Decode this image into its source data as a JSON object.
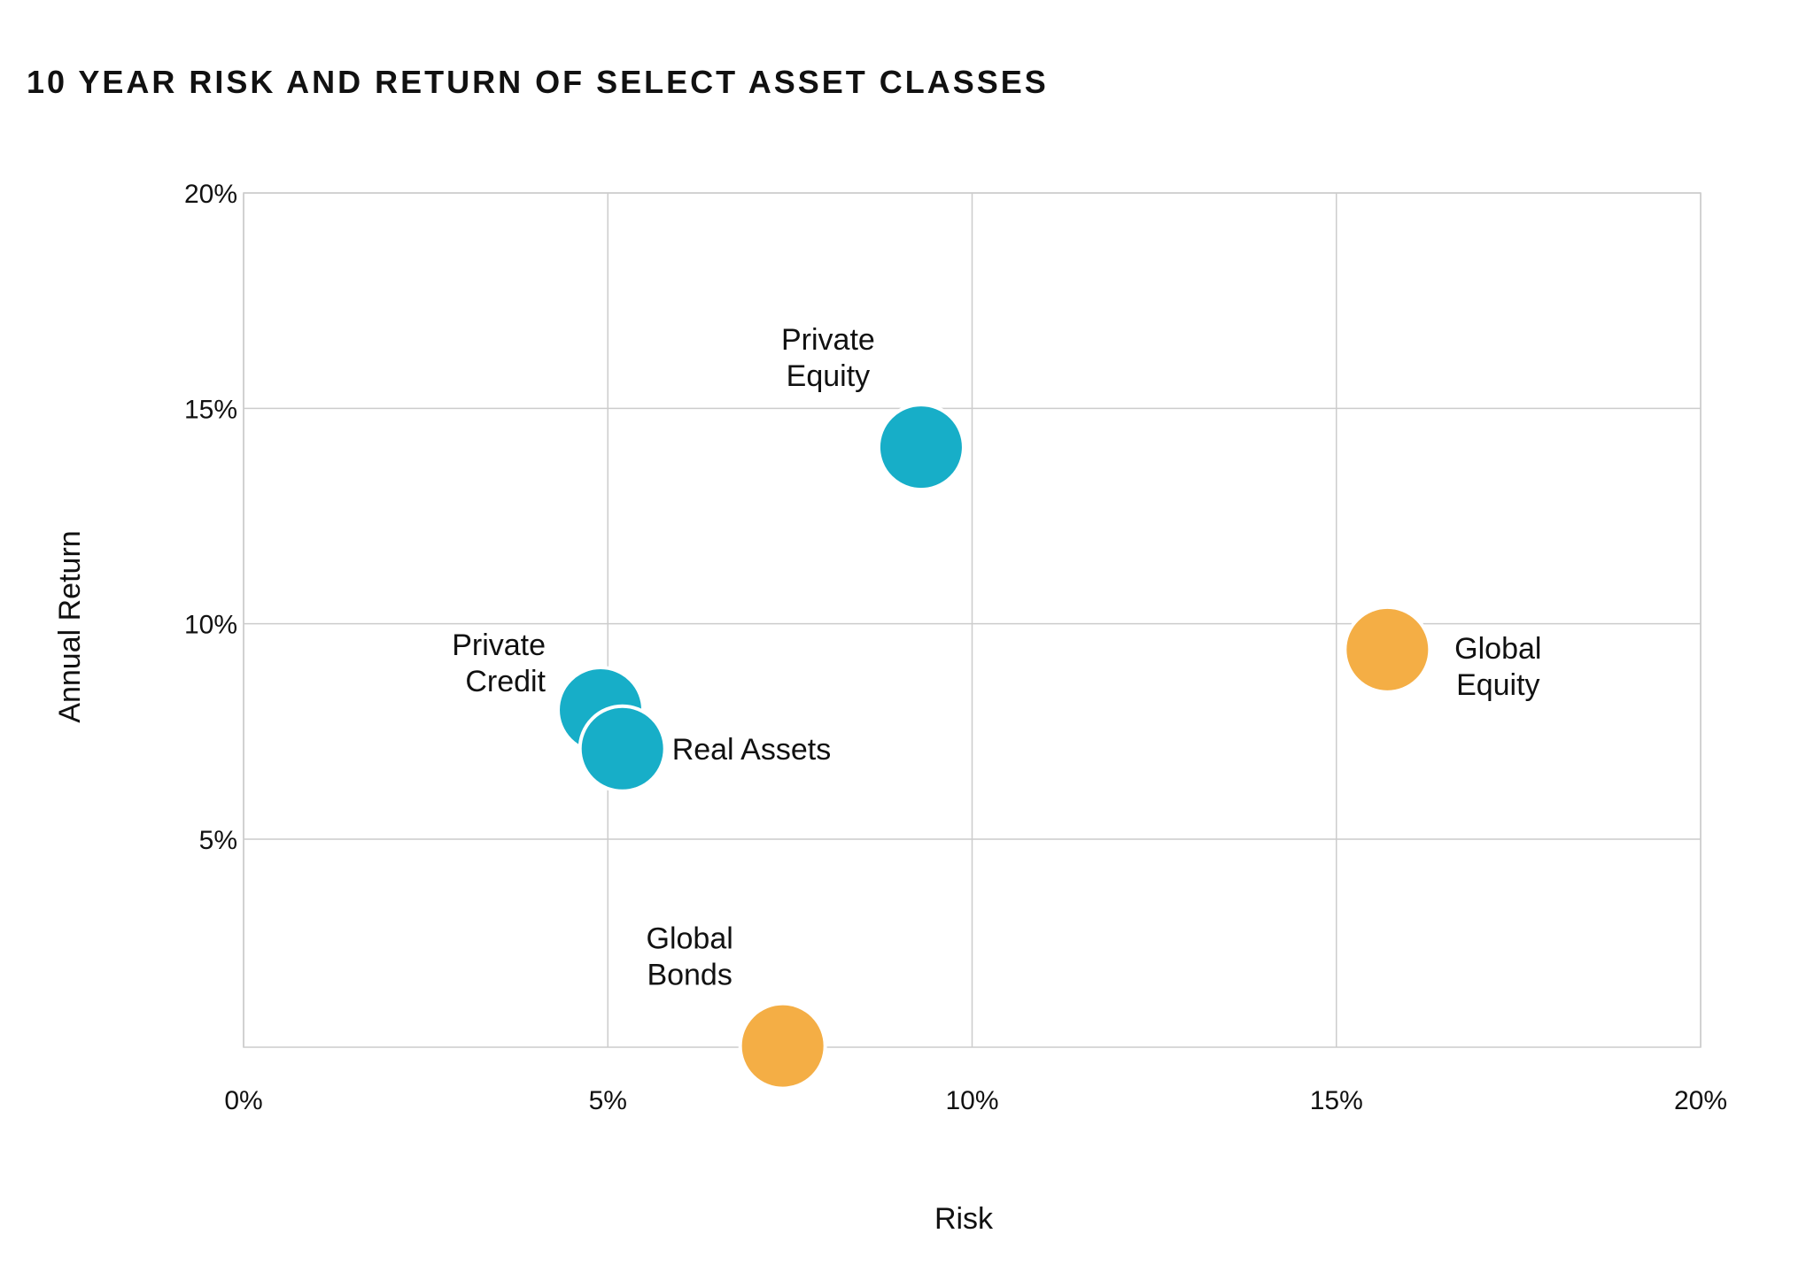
{
  "chart_data": {
    "type": "scatter",
    "title": "10 YEAR RISK AND RETURN OF SELECT ASSET CLASSES",
    "xlabel": "Risk",
    "ylabel": "Annual Return",
    "xlim": [
      0,
      20
    ],
    "ylim": [
      0.2,
      20
    ],
    "x_ticks": [
      0,
      5,
      10,
      15,
      20
    ],
    "x_tick_labels": [
      "0%",
      "5%",
      "10%",
      "15%",
      "20%"
    ],
    "y_ticks": [
      5,
      10,
      15,
      20
    ],
    "y_tick_labels": [
      "5%",
      "10%",
      "15%",
      "20%"
    ],
    "grid": true,
    "points": [
      {
        "name": "Private Equity",
        "label_lines": [
          "Private",
          "Equity"
        ],
        "x": 9.3,
        "y": 14.1,
        "color": "#17aec8",
        "label_side": "top-left"
      },
      {
        "name": "Global Equity",
        "label_lines": [
          "Global",
          "Equity"
        ],
        "x": 15.7,
        "y": 9.4,
        "color": "#f4ae45",
        "label_side": "right"
      },
      {
        "name": "Private Credit",
        "label_lines": [
          "Private",
          "Credit"
        ],
        "x": 4.9,
        "y": 8.0,
        "color": "#17aec8",
        "label_side": "left"
      },
      {
        "name": "Real Assets",
        "label_lines": [
          "Real Assets"
        ],
        "x": 5.2,
        "y": 7.1,
        "color": "#17aec8",
        "label_side": "right"
      },
      {
        "name": "Global Bonds",
        "label_lines": [
          "Global",
          "Bonds"
        ],
        "x": 7.4,
        "y": 0.2,
        "color": "#f4ae45",
        "label_side": "top-left"
      }
    ]
  }
}
